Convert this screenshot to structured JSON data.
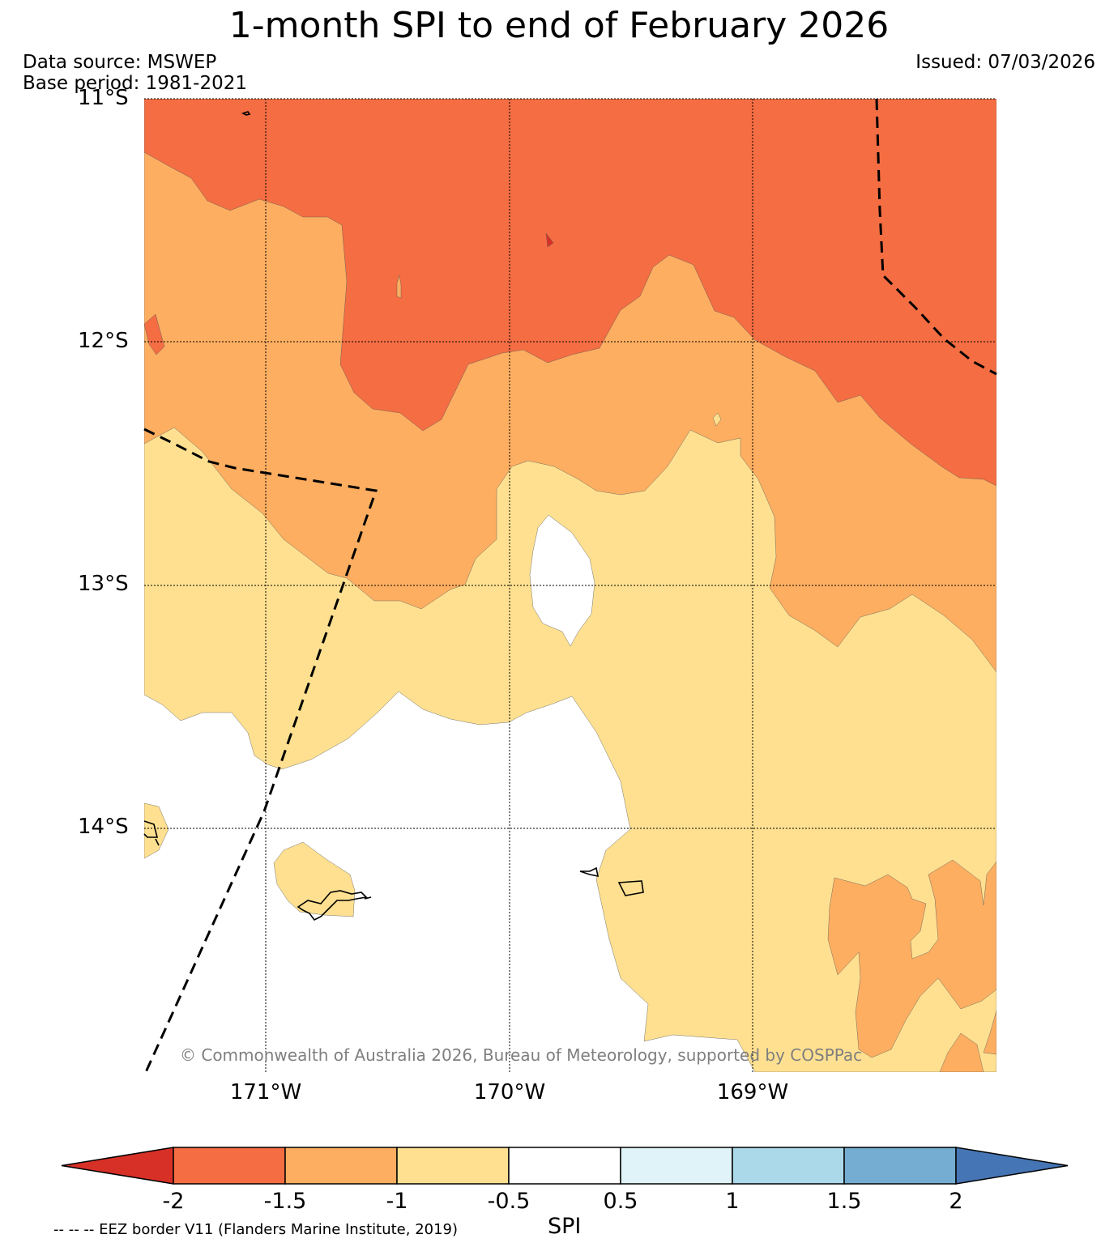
{
  "title": "1-month SPI to end of February 2026",
  "data_source": "Data source: MSWEP",
  "base_period": "Base period: 1981-2021",
  "issued": "Issued: 07/03/2026",
  "copyright": "© Commonwealth of Australia 2026, Bureau of Meteorology, supported by COSPPac",
  "eez_note": "-- -- -- EEZ border V11 (Flanders Marine Institute, 2019)",
  "map": {
    "lat_labels": [
      "11°S",
      "12°S",
      "13°S",
      "14°S"
    ],
    "lon_labels": [
      "171°W",
      "170°W",
      "169°W"
    ],
    "extent": {
      "lon_min": -171.5,
      "lon_max": -168.0,
      "lat_min": -15.0,
      "lat_max": -11.0
    },
    "gridlines": true
  },
  "colorbar": {
    "label": "SPI",
    "ticks": [
      "-2",
      "-1.5",
      "-1",
      "-0.5",
      "0.5",
      "1",
      "1.5",
      "2"
    ],
    "colors": [
      "#d73027",
      "#f46d43",
      "#fdae61",
      "#fee090",
      "#ffffff",
      "#e0f3f8",
      "#abd9e9",
      "#74add1",
      "#4575b4"
    ],
    "extend": "both"
  }
}
